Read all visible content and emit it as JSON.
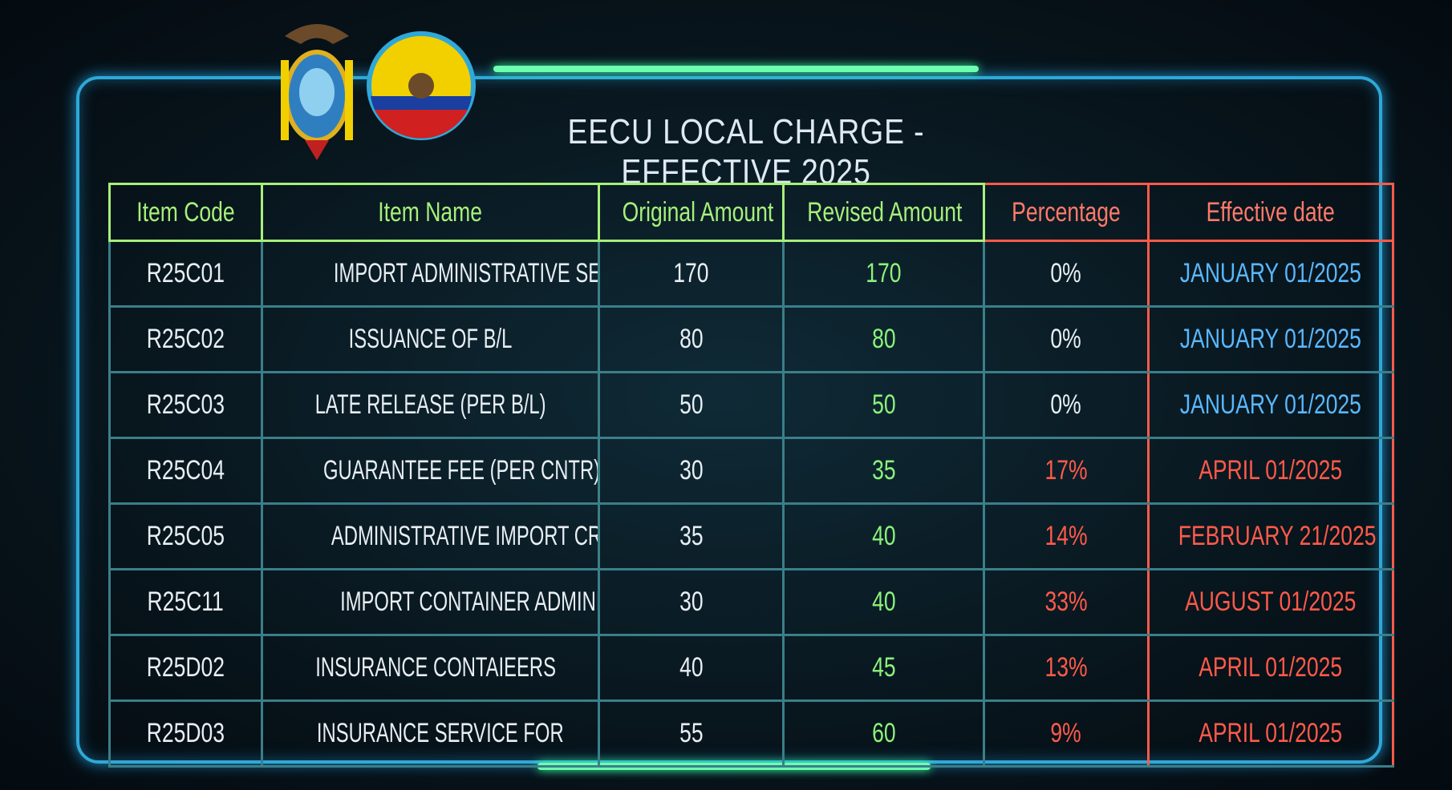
{
  "title": "EECU LOCAL CHARGE - EFFECTIVE 2025",
  "table": {
    "headers": [
      "Item Code",
      "Item Name",
      "Original Amount",
      "Revised Amount",
      "Percentage",
      "Effective date"
    ],
    "rows": [
      [
        "R25C01",
        "IMPORT ADMINISTRATIVE SERVICE",
        "170",
        "170",
        "0%",
        "JANUARY 01/2025"
      ],
      [
        "R25C02",
        "ISSUANCE OF B/L",
        "80",
        "80",
        "0%",
        "JANUARY 01/2025"
      ],
      [
        "R25C03",
        "LATE RELEASE (PER B/L)",
        "50",
        "50",
        "0%",
        "JANUARY 01/2025"
      ],
      [
        "R25C04",
        "GUARANTEE FEE (PER CNTR)",
        "30",
        "35",
        "17%",
        "APRIL 01/2025"
      ],
      [
        "R25C05",
        "ADMINISTRATIVE IMPORT CREDIT",
        "35",
        "40",
        "14%",
        "FEBRUARY 21/2025"
      ],
      [
        "R25C11",
        "IMPORT CONTAINER ADMINISTRATION",
        "30",
        "40",
        "33%",
        "AUGUST 01/2025"
      ],
      [
        "R25D02",
        "INSURANCE  CONTAIEERS",
        "40",
        "45",
        "13%",
        "APRIL 01/2025"
      ],
      [
        "R25D03",
        "INSURANCE SERVICE FOR",
        "55",
        "60",
        "9%",
        "APRIL 01/2025"
      ]
    ]
  }
}
